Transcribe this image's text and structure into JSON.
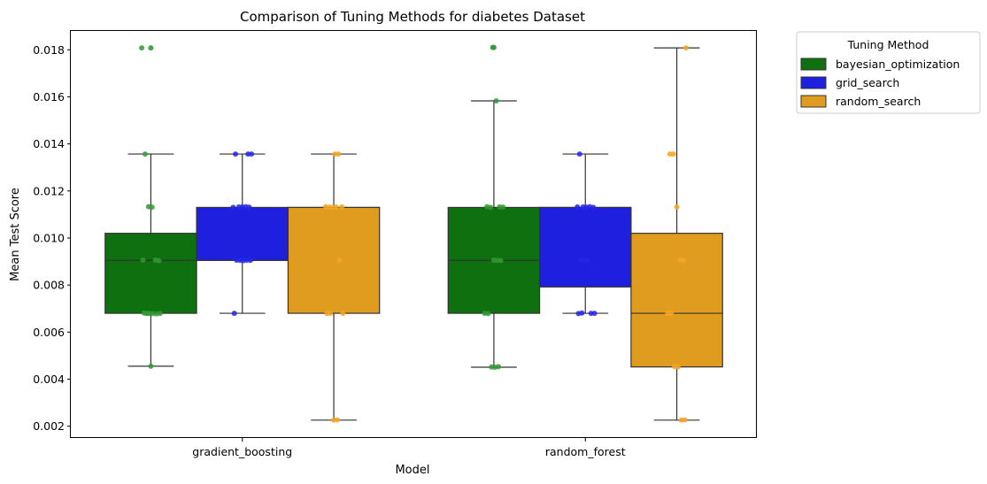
{
  "chart_data": {
    "type": "box",
    "title": "Comparison of Tuning Methods for diabetes Dataset",
    "xlabel": "Model",
    "ylabel": "Mean Test Score",
    "ylim": [
      0.0015,
      0.0188
    ],
    "yticks": [
      "0.002",
      "0.004",
      "0.006",
      "0.008",
      "0.010",
      "0.012",
      "0.014",
      "0.016",
      "0.018"
    ],
    "categories": [
      "gradient_boosting",
      "random_forest"
    ],
    "legend": {
      "title": "Tuning Method",
      "placement": "outside-top-right"
    },
    "grid": false,
    "series": [
      {
        "name": "bayesian_optimization",
        "color": "#0e700e",
        "point_color": "#339933",
        "boxes": [
          {
            "min": 0.00455,
            "q1": 0.0068,
            "median": 0.00905,
            "q3": 0.0102,
            "max": 0.01357,
            "fliers": [
              0.01808
            ]
          },
          {
            "min": 0.00451,
            "q1": 0.0068,
            "median": 0.00905,
            "q3": 0.0113,
            "max": 0.01583,
            "fliers": [
              0.0181
            ]
          }
        ],
        "points": [
          [
            0.01808,
            0.01357,
            0.01133,
            0.01131,
            0.00906,
            0.00904,
            0.00906,
            0.0068,
            0.0068,
            0.00679,
            0.00678,
            0.0068,
            0.00681,
            0.0068,
            0.00455
          ],
          [
            0.0181,
            0.01583,
            0.01132,
            0.01131,
            0.01133,
            0.0113,
            0.00906,
            0.00905,
            0.00904,
            0.0068,
            0.00679,
            0.00452,
            0.00451,
            0.00453
          ]
        ]
      },
      {
        "name": "grid_search",
        "color": "#1f1fe0",
        "point_color": "#2626e6",
        "boxes": [
          {
            "min": 0.0068,
            "q1": 0.00905,
            "median": 0.00905,
            "q3": 0.0113,
            "max": 0.01357,
            "fliers": []
          },
          {
            "min": 0.0068,
            "q1": 0.00792,
            "median": 0.0113,
            "q3": 0.0113,
            "max": 0.01357,
            "fliers": []
          }
        ],
        "points": [
          [
            0.01357,
            0.01357,
            0.01357,
            0.01132,
            0.01132,
            0.01133,
            0.01131,
            0.0113,
            0.00906,
            0.00905,
            0.00904,
            0.00906,
            0.00905,
            0.0068
          ],
          [
            0.01357,
            0.01132,
            0.01131,
            0.01133,
            0.0113,
            0.01132,
            0.00905,
            0.00906,
            0.00904,
            0.0068,
            0.0068,
            0.00679,
            0.00681
          ]
        ]
      },
      {
        "name": "random_search",
        "color": "#e09c1f",
        "point_color": "#f5a623",
        "boxes": [
          {
            "min": 0.00226,
            "q1": 0.0068,
            "median": 0.0113,
            "q3": 0.0113,
            "max": 0.01357,
            "fliers": []
          },
          {
            "min": 0.00226,
            "q1": 0.00452,
            "median": 0.0068,
            "q3": 0.0102,
            "max": 0.01808,
            "fliers": []
          }
        ],
        "points": [
          [
            0.01357,
            0.01357,
            0.01132,
            0.01133,
            0.01131,
            0.0113,
            0.01132,
            0.00906,
            0.0068,
            0.00679,
            0.0068,
            0.00226,
            0.00227
          ],
          [
            0.01808,
            0.01357,
            0.01357,
            0.01132,
            0.00906,
            0.00905,
            0.0068,
            0.0068,
            0.00453,
            0.00452,
            0.00226,
            0.00227
          ]
        ]
      }
    ]
  }
}
